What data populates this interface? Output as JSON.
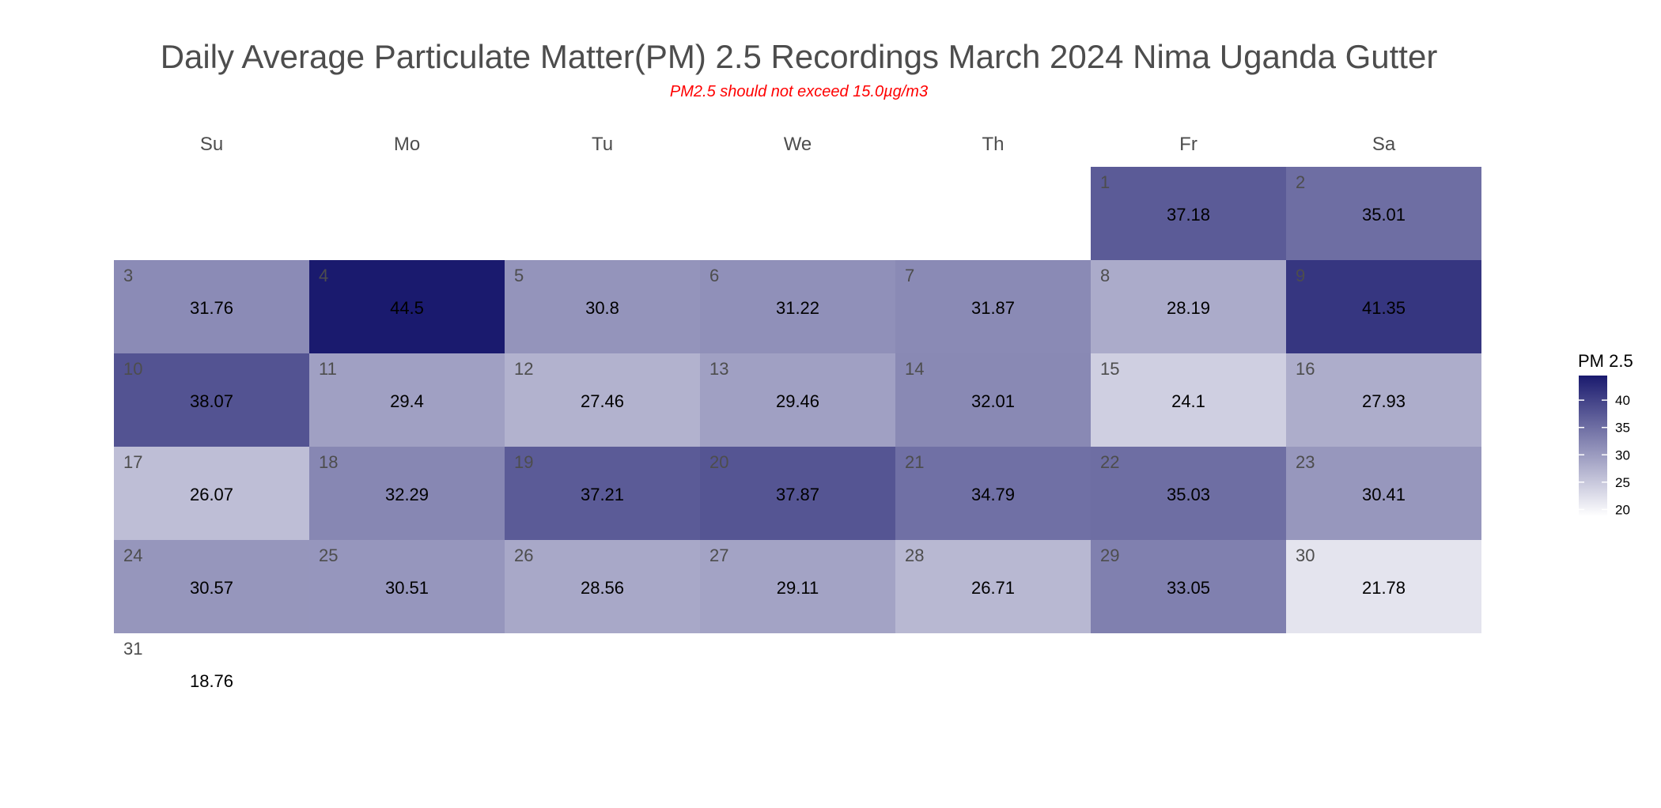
{
  "chart_data": {
    "type": "heatmap",
    "title": "Daily Average Particulate Matter(PM) 2.5 Recordings March 2024 Nima Uganda Gutter",
    "subtitle": "PM2.5 should not exceed 15.0µg/m3",
    "weekdays": [
      "Su",
      "Mo",
      "Tu",
      "We",
      "Th",
      "Fr",
      "Sa"
    ],
    "first_weekday_index": 5,
    "days": [
      1,
      2,
      3,
      4,
      5,
      6,
      7,
      8,
      9,
      10,
      11,
      12,
      13,
      14,
      15,
      16,
      17,
      18,
      19,
      20,
      21,
      22,
      23,
      24,
      25,
      26,
      27,
      28,
      29,
      30,
      31
    ],
    "values": [
      "37.18",
      "35.01",
      "31.76",
      "44.5",
      "30.8",
      "31.22",
      "31.87",
      "28.19",
      "41.35",
      "38.07",
      "29.4",
      "27.46",
      "29.46",
      "32.01",
      "24.1",
      "27.93",
      "26.07",
      "32.29",
      "37.21",
      "37.87",
      "34.79",
      "35.03",
      "30.41",
      "30.57",
      "30.51",
      "28.56",
      "29.11",
      "26.71",
      "33.05",
      "21.78",
      "18.76"
    ],
    "legend": {
      "title": "PM 2.5",
      "ticks": [
        "20",
        "25",
        "30",
        "35",
        "40"
      ],
      "range": [
        18.76,
        44.5
      ],
      "color_low": "#ffffff",
      "color_high": "#1a1a6e"
    }
  }
}
